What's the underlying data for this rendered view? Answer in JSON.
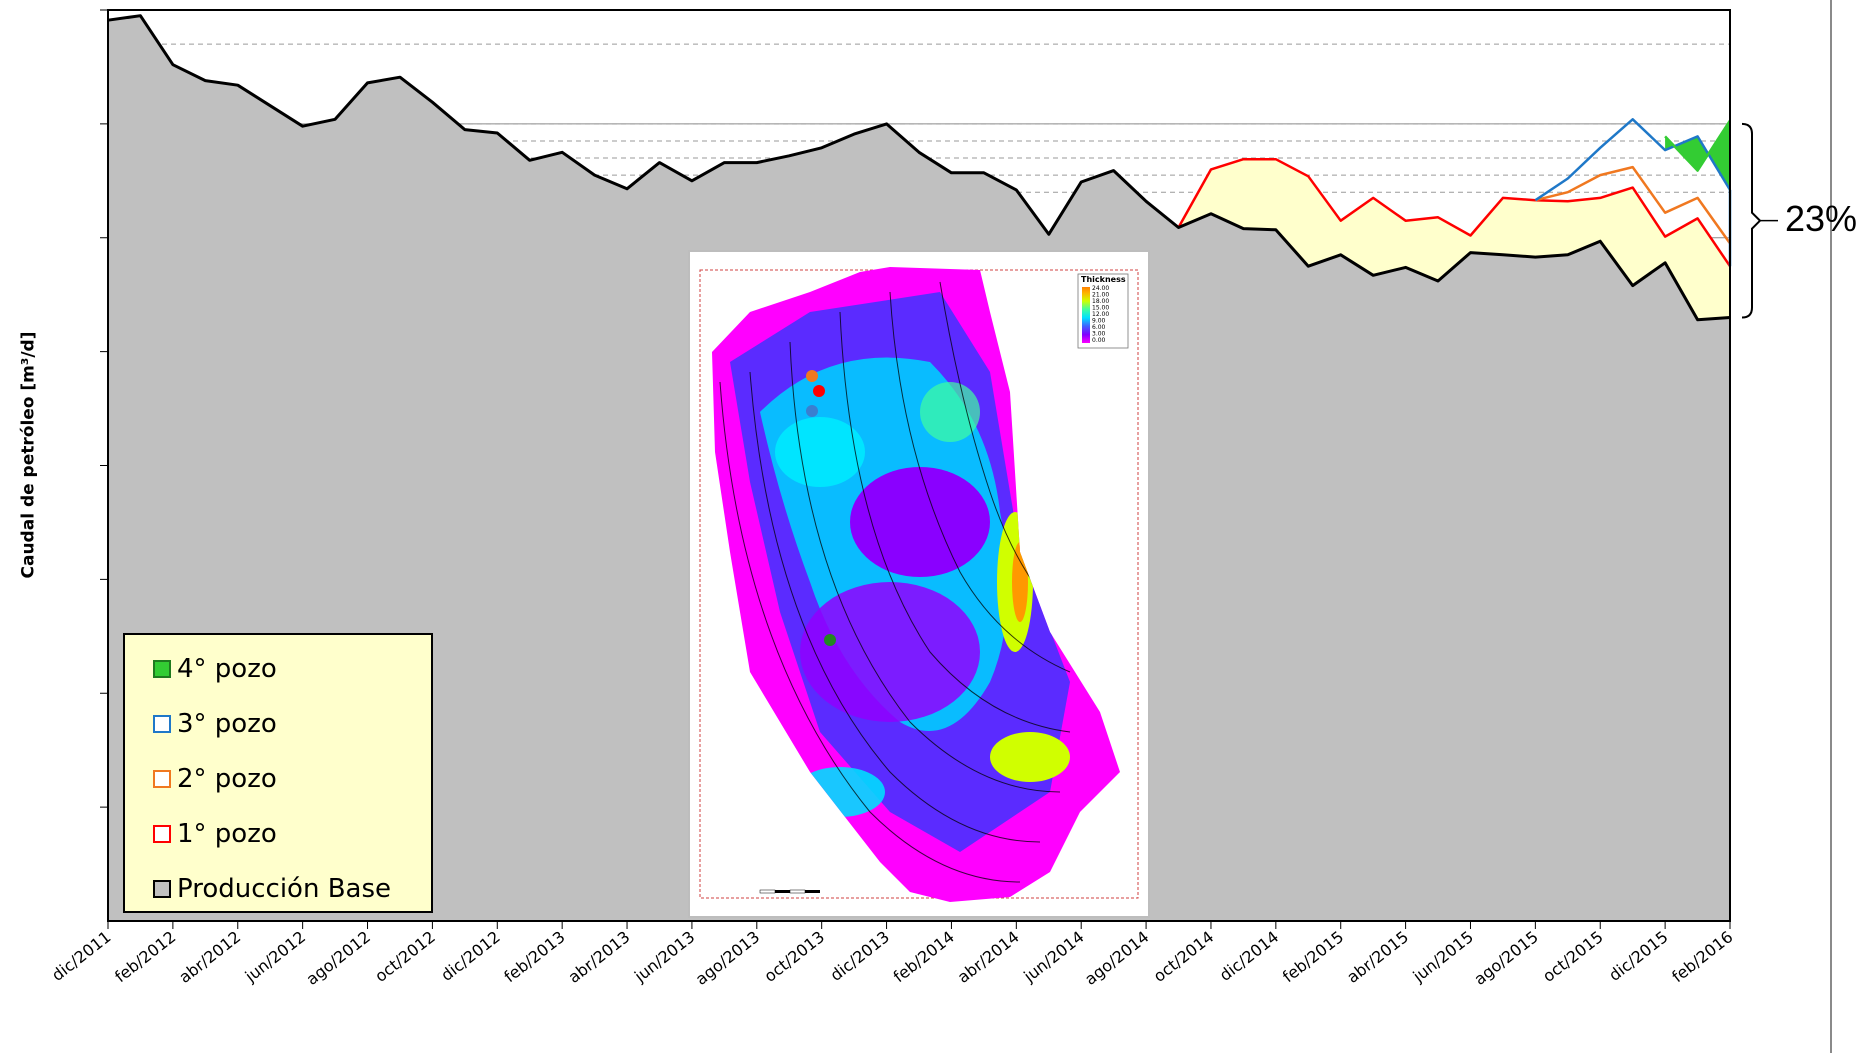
{
  "chart_data": {
    "type": "area",
    "title": "",
    "xlabel": "",
    "ylabel": "Caudal de petróleo [m³/d]",
    "x_ticks": [
      "dic/2011",
      "feb/2012",
      "abr/2012",
      "jun/2012",
      "ago/2012",
      "oct/2012",
      "dic/2012",
      "feb/2013",
      "abr/2013",
      "jun/2013",
      "ago/2013",
      "oct/2013",
      "dic/2013",
      "feb/2014",
      "abr/2014",
      "jun/2014",
      "ago/2014",
      "oct/2014",
      "dic/2014",
      "feb/2015",
      "abr/2015",
      "jun/2015",
      "ago/2015",
      "oct/2015",
      "dic/2015",
      "feb/2016"
    ],
    "y_gridlines": 8,
    "legend_position": "bottom-left",
    "series": [
      {
        "name": "Producción Base",
        "color": "#c0c0c0",
        "x": [
          "2011-12",
          "2012-01",
          "2012-02",
          "2012-03",
          "2012-04",
          "2012-05",
          "2012-06",
          "2012-07",
          "2012-08",
          "2012-09",
          "2012-10",
          "2012-11",
          "2012-12",
          "2013-01",
          "2013-02",
          "2013-03",
          "2013-04",
          "2013-05",
          "2013-06",
          "2013-07",
          "2013-08",
          "2013-09",
          "2013-10",
          "2013-11",
          "2013-12",
          "2014-01",
          "2014-02",
          "2014-03",
          "2014-04",
          "2014-05",
          "2014-06",
          "2014-07",
          "2014-08",
          "2014-09",
          "2014-10",
          "2014-11",
          "2014-12",
          "2015-01",
          "2015-02",
          "2015-03",
          "2015-04",
          "2015-05",
          "2015-06",
          "2015-07",
          "2015-08",
          "2015-09",
          "2015-10",
          "2015-11",
          "2015-12",
          "2016-01",
          "2016-02"
        ],
        "values": [
          7.91,
          7.95,
          7.52,
          7.38,
          7.34,
          7.16,
          6.98,
          7.04,
          7.36,
          7.41,
          7.19,
          6.95,
          6.92,
          6.68,
          6.75,
          6.55,
          6.43,
          6.66,
          6.5,
          6.66,
          6.66,
          6.72,
          6.79,
          6.91,
          7.0,
          6.75,
          6.57,
          6.57,
          6.42,
          6.03,
          6.49,
          6.59,
          6.32,
          6.09,
          6.21,
          6.08,
          6.07,
          5.75,
          5.85,
          5.67,
          5.74,
          5.62,
          5.87,
          5.85,
          5.83,
          5.85,
          5.97,
          5.58,
          5.78,
          5.28,
          5.3
        ]
      },
      {
        "name": "1° pozo",
        "color": "#ff0000",
        "x": [
          "2014-09",
          "2014-10",
          "2014-11",
          "2014-12",
          "2015-01",
          "2015-02",
          "2015-03",
          "2015-04",
          "2015-05",
          "2015-06",
          "2015-07",
          "2015-08",
          "2015-09",
          "2015-10",
          "2015-11",
          "2015-12",
          "2016-01",
          "2016-02"
        ],
        "values": [
          6.09,
          6.6,
          6.69,
          6.69,
          6.54,
          6.15,
          6.35,
          6.15,
          6.18,
          6.02,
          6.35,
          6.33,
          6.32,
          6.35,
          6.44,
          6.01,
          6.17,
          5.75
        ]
      },
      {
        "name": "2° pozo",
        "color": "#f07820",
        "x": [
          "2015-08",
          "2015-09",
          "2015-10",
          "2015-11",
          "2015-12",
          "2016-01",
          "2016-02"
        ],
        "values": [
          6.33,
          6.4,
          6.55,
          6.62,
          6.22,
          6.35,
          5.95
        ]
      },
      {
        "name": "3° pozo",
        "color": "#1f78c8",
        "x": [
          "2015-08",
          "2015-09",
          "2015-10",
          "2015-11",
          "2015-12",
          "2016-01",
          "2016-02"
        ],
        "values": [
          6.33,
          6.52,
          6.79,
          7.04,
          6.77,
          6.89,
          6.42
        ]
      },
      {
        "name": "4° pozo",
        "color": "#33cc33",
        "x": [
          "2015-12",
          "2016-01",
          "2016-02"
        ],
        "values": [
          6.89,
          6.59,
          7.03
        ]
      }
    ],
    "annotation": "23%"
  },
  "inset_map": {
    "legend_title": "Thickness",
    "legend_values": [
      "24.00",
      "21.00",
      "18.00",
      "15.00",
      "12.00",
      "9.00",
      "6.00",
      "3.00",
      "0.00"
    ]
  }
}
